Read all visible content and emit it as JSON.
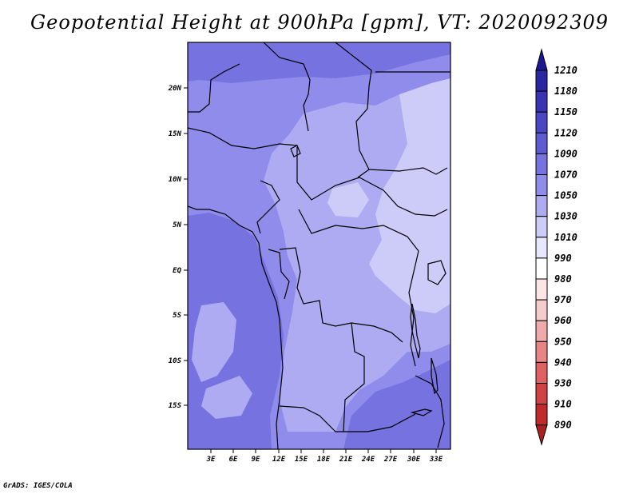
{
  "title": "Geopotential Height at 900hPa [gpm], VT: 2020092309",
  "footer": "GrADS: IGES/COLA",
  "lat_labels": [
    "20N",
    "15N",
    "10N",
    "5N",
    "EQ",
    "5S",
    "10S",
    "15S"
  ],
  "lon_labels": [
    "3E",
    "6E",
    "9E",
    "12E",
    "15E",
    "18E",
    "21E",
    "24E",
    "27E",
    "30E",
    "33E"
  ],
  "colorbar": {
    "labels": [
      "1210",
      "1180",
      "1150",
      "1120",
      "1090",
      "1070",
      "1050",
      "1030",
      "1010",
      "990",
      "980",
      "970",
      "960",
      "950",
      "940",
      "930",
      "910",
      "890"
    ],
    "colors": [
      "#1b1790",
      "#2a26a2",
      "#3834b2",
      "#4a46c4",
      "#5e5ad2",
      "#7672e0",
      "#908ceb",
      "#aeabf2",
      "#cdcbf8",
      "#e8e8fc",
      "#ffffff",
      "#fbe5e5",
      "#f6cbcb",
      "#f0aaaa",
      "#e78585",
      "#de6262",
      "#d14242",
      "#c12a2a",
      "#aa1f1f"
    ]
  },
  "map": {
    "colors": {
      "band_1070": "#7672e0",
      "band_1050": "#908ceb",
      "band_1030": "#aeabf2",
      "band_1010": "#cdcbf8"
    }
  }
}
